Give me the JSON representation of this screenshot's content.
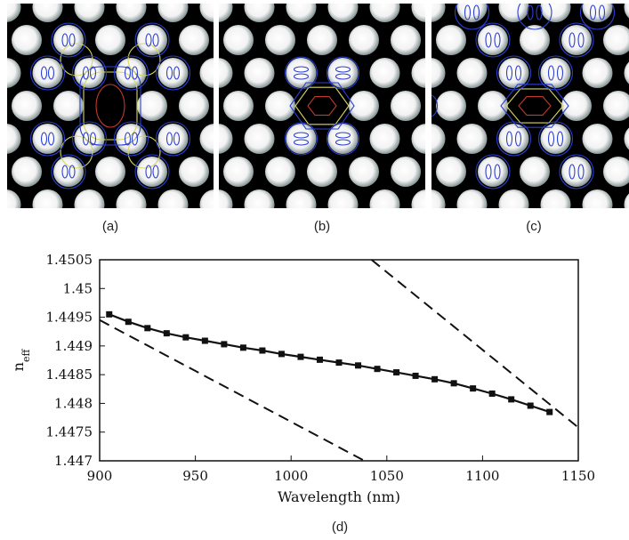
{
  "panels": [
    {
      "label": "(a)",
      "mode": "a"
    },
    {
      "label": "(b)",
      "mode": "b"
    },
    {
      "label": "(c)",
      "mode": "c"
    }
  ],
  "colors": {
    "background": "#000000",
    "rods": "#f2f2f2",
    "contour_red": "#c0392b",
    "contour_yellow": "#d8d860",
    "contour_blue": "#2b3fd0"
  },
  "chart_data": {
    "type": "line",
    "panel_label": "(d)",
    "xlabel": "Wavelength (nm)",
    "ylabel": "n_eff",
    "ylabel_main": "n",
    "ylabel_sub": "eff",
    "xlim": [
      900,
      1150
    ],
    "ylim": [
      1.447,
      1.4505
    ],
    "xticks": [
      900,
      950,
      1000,
      1050,
      1100,
      1150
    ],
    "yticks": [
      1.447,
      1.4475,
      1.448,
      1.4485,
      1.449,
      1.4495,
      1.45,
      1.4505
    ],
    "ytick_labels": [
      "1.447",
      "1.4475",
      "1.448",
      "1.4485",
      "1.449",
      "1.4495",
      "1.45",
      "1.4505"
    ],
    "grid": false,
    "series": [
      {
        "style": "solid-markers",
        "x": [
          905,
          915,
          925,
          935,
          945,
          955,
          965,
          975,
          985,
          995,
          1005,
          1015,
          1025,
          1035,
          1045,
          1055,
          1065,
          1075,
          1085,
          1095,
          1105,
          1115,
          1125,
          1135
        ],
        "y": [
          1.44955,
          1.44942,
          1.44931,
          1.44922,
          1.44915,
          1.44909,
          1.44903,
          1.44897,
          1.44892,
          1.44886,
          1.44881,
          1.44876,
          1.44871,
          1.44866,
          1.4486,
          1.44854,
          1.44848,
          1.44842,
          1.44835,
          1.44826,
          1.44817,
          1.44807,
          1.44796,
          1.44785
        ]
      },
      {
        "style": "dashed",
        "x": [
          900,
          1040
        ],
        "y": [
          1.44945,
          1.44697
        ]
      },
      {
        "style": "dashed",
        "x": [
          1042,
          1150
        ],
        "y": [
          1.4505,
          1.44758
        ]
      }
    ]
  }
}
